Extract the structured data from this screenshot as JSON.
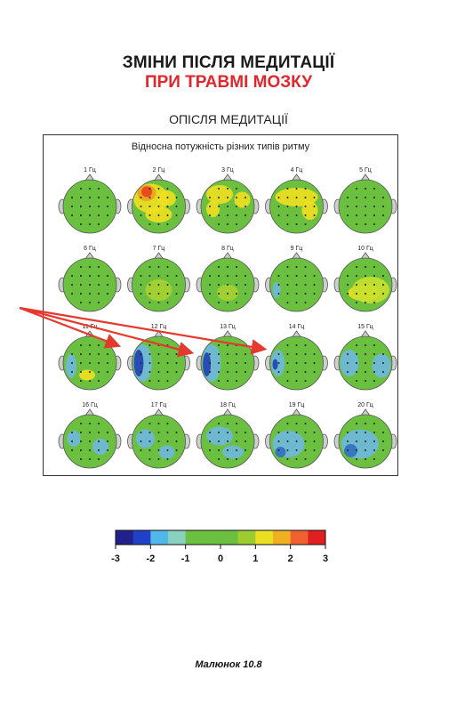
{
  "title": {
    "line1": "ЗМІНИ ПІСЛЯ МЕДИТАЦІЇ",
    "line2": "ПРИ ТРАВМІ МОЗКУ"
  },
  "section_label": "ОПІСЛЯ МЕДИТАЦІЇ",
  "panel_title": "Відносна потужність різних типів ритму",
  "maps": [
    {
      "label": "1 Гц",
      "blobs": []
    },
    {
      "label": "2 Гц",
      "blobs": [
        "#f0e020:-0.3:-0.3:0.65:0.55",
        "#f0a020:-0.45:-0.5:0.35:0.3",
        "#e84020:-0.45:-0.55:0.2:0.2",
        "#f0e020:0.3:-0.3:0.35:0.3",
        "#f0e020:0.0:0.3:0.5:0.3"
      ]
    },
    {
      "label": "3 Гц",
      "blobs": [
        "#f0e020:-0.3:-0.45:0.5:0.35",
        "#f0e020:0.55:-0.25:0.3:0.3",
        "#f0e020:-0.55:0.1:0.25:0.3"
      ]
    },
    {
      "label": "4 Гц",
      "blobs": [
        "#f0e020:0.0:-0.35:0.8:0.35",
        "#f0e020:0.5:0.15:0.3:0.35"
      ]
    },
    {
      "label": "5 Гц",
      "blobs": []
    },
    {
      "label": "6 Гц",
      "blobs": []
    },
    {
      "label": "7 Гц",
      "blobs": [
        "#a8d030:0.0:0.2:0.5:0.4"
      ]
    },
    {
      "label": "8 Гц",
      "blobs": [
        "#a8d030:0.0:0.3:0.4:0.3"
      ]
    },
    {
      "label": "9 Гц",
      "blobs": [
        "#6fb8e0:-0.75:0.2:0.15:0.3"
      ]
    },
    {
      "label": "10 Гц",
      "blobs": [
        "#f0e020:-0.05:0.3:0.6:0.3",
        "#c8e030:0.2:0.2:0.7:0.5"
      ]
    },
    {
      "label": "11 Гц",
      "blobs": [
        "#6fb8e0:-0.7:0.1:0.2:0.45",
        "#f0e020:-0.1:0.45:0.3:0.2"
      ]
    },
    {
      "label": "12 Гц",
      "blobs": [
        "#6fb8e0:-0.6:0.0:0.35:0.7",
        "#2040b0:-0.75:0.0:0.18:0.5"
      ]
    },
    {
      "label": "13 Гц",
      "blobs": [
        "#6fb8e0:-0.6:0.0:0.35:0.7",
        "#2040b0:-0.78:0.05:0.15:0.45"
      ]
    },
    {
      "label": "14 Гц",
      "blobs": [
        "#6fb8e0:-0.7:0.0:0.25:0.5",
        "#2040b0:-0.8:0.05:0.1:0.2"
      ]
    },
    {
      "label": "15 Гц",
      "blobs": [
        "#6fb8e0:-0.6:0.0:0.35:0.5",
        "#6fb8e0:0.6:0.1:0.35:0.45"
      ]
    },
    {
      "label": "16 Гц",
      "blobs": [
        "#6fb8e0:-0.6:-0.1:0.25:0.3",
        "#6fb8e0:0.4:0.2:0.3:0.3"
      ]
    },
    {
      "label": "17 Гц",
      "blobs": [
        "#6fb8e0:-0.5:-0.1:0.35:0.35",
        "#6fb8e0:0.3:0.4:0.3:0.25"
      ]
    },
    {
      "label": "18 Гц",
      "blobs": [
        "#6fb8e0:-0.3:-0.2:0.5:0.35",
        "#6fb8e0:0.2:0.4:0.4:0.25"
      ]
    },
    {
      "label": "19 Гц",
      "blobs": [
        "#6fb8e0:-0.3:0.1:0.6:0.5",
        "#3070c0:-0.6:0.4:0.2:0.2"
      ]
    },
    {
      "label": "20 Гц",
      "blobs": [
        "#6fb8e0:-0.2:0.1:0.7:0.55",
        "#3070c0:-0.55:0.35:0.25:0.25"
      ]
    }
  ],
  "colorbar": {
    "colors": [
      "#22208a",
      "#2040c8",
      "#50b8e8",
      "#88d0c0",
      "#6cc040",
      "#6cc040",
      "#6cc040",
      "#9ccc30",
      "#e8e020",
      "#f0b020",
      "#f06030",
      "#e02020"
    ],
    "ticks": [
      "-3",
      "-2",
      "-1",
      "0",
      "1",
      "2",
      "3"
    ],
    "tick_values": [
      -3,
      -2,
      -1,
      0,
      1,
      2,
      3
    ]
  },
  "caption": "Малюнок 10.8"
}
